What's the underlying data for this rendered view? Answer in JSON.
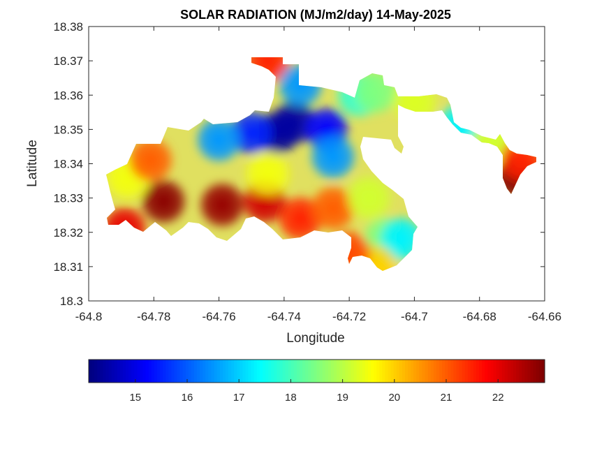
{
  "chart_data": {
    "type": "heatmap",
    "title": "SOLAR RADIATION (MJ/m2/day) 14-May-2025",
    "xlabel": "Longitude",
    "ylabel": "Latitude",
    "xlim": [
      -64.8,
      -64.66
    ],
    "ylim": [
      18.3,
      18.38
    ],
    "xticks": [
      -64.8,
      -64.78,
      -64.76,
      -64.74,
      -64.72,
      -64.7,
      -64.68,
      -64.66
    ],
    "xtick_labels": [
      "-64.8",
      "-64.78",
      "-64.76",
      "-64.74",
      "-64.72",
      "-64.7",
      "-64.68",
      "-64.66"
    ],
    "yticks": [
      18.3,
      18.31,
      18.32,
      18.33,
      18.34,
      18.35,
      18.36,
      18.37,
      18.38
    ],
    "ytick_labels": [
      "18.3",
      "18.31",
      "18.32",
      "18.33",
      "18.34",
      "18.35",
      "18.36",
      "18.37",
      "18.38"
    ],
    "colormap": "jet",
    "colorbar": {
      "orientation": "horizontal",
      "placement": "bottom",
      "range": [
        14.1,
        22.9
      ],
      "ticks": [
        15,
        16,
        17,
        18,
        19,
        20,
        21,
        22
      ],
      "tick_labels": [
        "15",
        "16",
        "17",
        "18",
        "19",
        "20",
        "21",
        "22"
      ]
    },
    "hotspots": [
      {
        "lon": -64.777,
        "lat": 18.329,
        "value": 22.8
      },
      {
        "lon": -64.759,
        "lat": 18.328,
        "value": 22.7
      },
      {
        "lon": -64.789,
        "lat": 18.321,
        "value": 22.0
      },
      {
        "lon": -64.746,
        "lat": 18.329,
        "value": 22.2
      },
      {
        "lon": -64.735,
        "lat": 18.324,
        "value": 21.5
      },
      {
        "lon": -64.725,
        "lat": 18.327,
        "value": 21.0
      },
      {
        "lon": -64.788,
        "lat": 18.336,
        "value": 19.5
      },
      {
        "lon": -64.781,
        "lat": 18.341,
        "value": 21.0
      },
      {
        "lon": -64.745,
        "lat": 18.337,
        "value": 19.5
      },
      {
        "lon": -64.745,
        "lat": 18.37,
        "value": 21.5
      },
      {
        "lon": -64.742,
        "lat": 18.349,
        "value": 14.3
      },
      {
        "lon": -64.737,
        "lat": 18.352,
        "value": 14.4
      },
      {
        "lon": -64.75,
        "lat": 18.349,
        "value": 15.5
      },
      {
        "lon": -64.76,
        "lat": 18.347,
        "value": 16.5
      },
      {
        "lon": -64.727,
        "lat": 18.35,
        "value": 15.2
      },
      {
        "lon": -64.725,
        "lat": 18.342,
        "value": 16.5
      },
      {
        "lon": -64.735,
        "lat": 18.363,
        "value": 16.5
      },
      {
        "lon": -64.717,
        "lat": 18.36,
        "value": 17.8
      },
      {
        "lon": -64.712,
        "lat": 18.361,
        "value": 18.5
      },
      {
        "lon": -64.7,
        "lat": 18.358,
        "value": 19.3
      },
      {
        "lon": -64.686,
        "lat": 18.351,
        "value": 17.3
      },
      {
        "lon": -64.676,
        "lat": 18.346,
        "value": 19.2
      },
      {
        "lon": -64.669,
        "lat": 18.336,
        "value": 22.9
      },
      {
        "lon": -64.667,
        "lat": 18.341,
        "value": 21.5
      },
      {
        "lon": -64.714,
        "lat": 18.33,
        "value": 19.2
      },
      {
        "lon": -64.709,
        "lat": 18.318,
        "value": 18.5
      },
      {
        "lon": -64.704,
        "lat": 18.318,
        "value": 17.3
      },
      {
        "lon": -64.712,
        "lat": 18.31,
        "value": 20.0
      },
      {
        "lon": -64.72,
        "lat": 18.314,
        "value": 21.2
      }
    ]
  }
}
